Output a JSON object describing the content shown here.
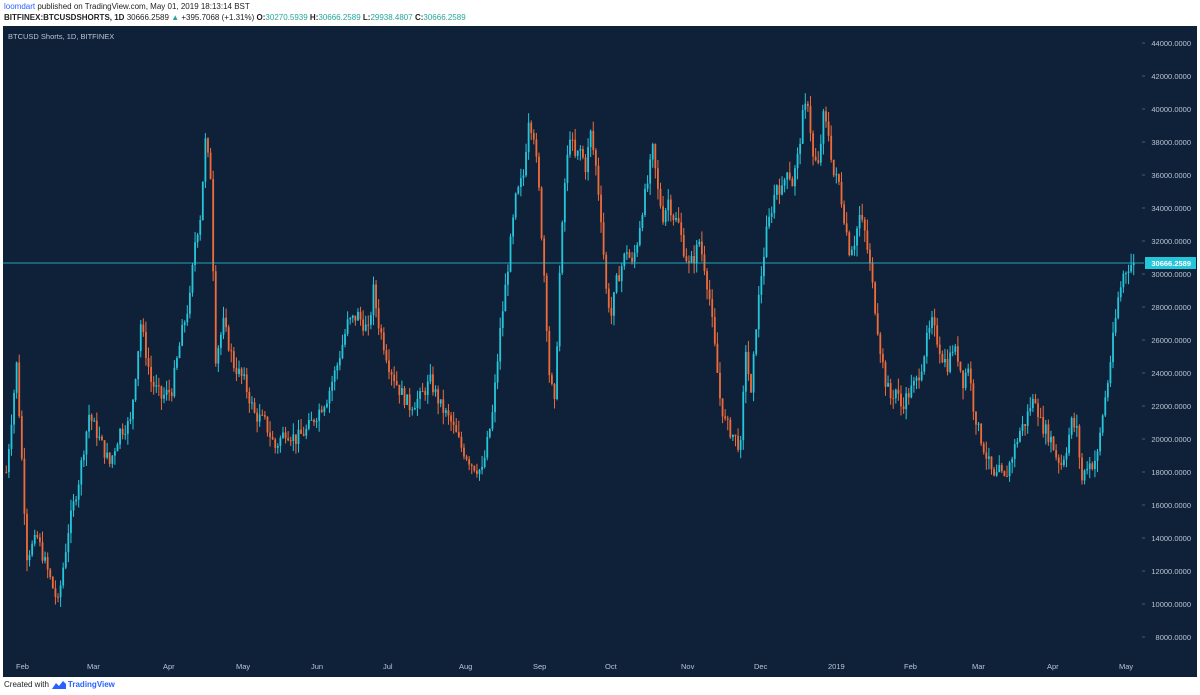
{
  "header": {
    "author": "loomdart",
    "published_text": " published on TradingView.com, May 01, 2019 18:13:14 BST",
    "symbol": "BITFINEX:BTCUSDSHORTS, 1D",
    "last": "30666.2589",
    "change_arrow": "▲",
    "change": "+395.7068 (+1.31%)",
    "o_label": "O:",
    "o_value": "30270.5939",
    "h_label": "H:",
    "h_value": "30666.2589",
    "l_label": "L:",
    "l_value": "29938.4807",
    "c_label": "C:",
    "c_value": "30666.2589"
  },
  "footer": {
    "created_text": "Created with",
    "brand": "TradingView"
  },
  "colors": {
    "background": "#0f2139",
    "up": "#26c6da",
    "down": "#ef6c3a",
    "price_line": "#26c6da"
  },
  "chart_data": {
    "type": "candlestick",
    "title": "BTCUSD Shorts, 1D, BITFINEX",
    "ylim": [
      7000,
      45000
    ],
    "y_ticks": [
      "44000.0000",
      "42000.0000",
      "40000.0000",
      "38000.0000",
      "36000.0000",
      "34000.0000",
      "32000.0000",
      "30000.0000",
      "28000.0000",
      "26000.0000",
      "24000.0000",
      "22000.0000",
      "20000.0000",
      "18000.0000",
      "16000.0000",
      "14000.0000",
      "12000.0000",
      "10000.0000",
      "8000.0000"
    ],
    "x_ticks": [
      "Feb",
      "Mar",
      "Apr",
      "May",
      "Jun",
      "Jul",
      "Aug",
      "Sep",
      "Oct",
      "Nov",
      "Dec",
      "2019",
      "Feb",
      "Mar",
      "Apr",
      "May"
    ],
    "last_price_label": "30666.2589",
    "last_price": 30666.2589,
    "close_series": [
      {
        "t": 0,
        "v": 18000
      },
      {
        "t": 4,
        "v": 24500
      },
      {
        "t": 8,
        "v": 13000
      },
      {
        "t": 12,
        "v": 14000
      },
      {
        "t": 16,
        "v": 12000
      },
      {
        "t": 20,
        "v": 10000
      },
      {
        "t": 24,
        "v": 14500
      },
      {
        "t": 28,
        "v": 17500
      },
      {
        "t": 32,
        "v": 21500
      },
      {
        "t": 36,
        "v": 20000
      },
      {
        "t": 40,
        "v": 18500
      },
      {
        "t": 44,
        "v": 20500
      },
      {
        "t": 48,
        "v": 21000
      },
      {
        "t": 52,
        "v": 27000
      },
      {
        "t": 56,
        "v": 23500
      },
      {
        "t": 60,
        "v": 22500
      },
      {
        "t": 64,
        "v": 23000
      },
      {
        "t": 68,
        "v": 26500
      },
      {
        "t": 71,
        "v": 28500
      },
      {
        "t": 73,
        "v": 32000
      },
      {
        "t": 75,
        "v": 33500
      },
      {
        "t": 77,
        "v": 38000
      },
      {
        "t": 79,
        "v": 36000
      },
      {
        "t": 81,
        "v": 25000
      },
      {
        "t": 84,
        "v": 27000
      },
      {
        "t": 88,
        "v": 24500
      },
      {
        "t": 92,
        "v": 23500
      },
      {
        "t": 96,
        "v": 21500
      },
      {
        "t": 100,
        "v": 21000
      },
      {
        "t": 104,
        "v": 19500
      },
      {
        "t": 108,
        "v": 20500
      },
      {
        "t": 112,
        "v": 20000
      },
      {
        "t": 116,
        "v": 20500
      },
      {
        "t": 120,
        "v": 21500
      },
      {
        "t": 124,
        "v": 22500
      },
      {
        "t": 128,
        "v": 24500
      },
      {
        "t": 132,
        "v": 27000
      },
      {
        "t": 136,
        "v": 27500
      },
      {
        "t": 140,
        "v": 26500
      },
      {
        "t": 142,
        "v": 29000
      },
      {
        "t": 144,
        "v": 27000
      },
      {
        "t": 148,
        "v": 24500
      },
      {
        "t": 152,
        "v": 23000
      },
      {
        "t": 156,
        "v": 22000
      },
      {
        "t": 160,
        "v": 22500
      },
      {
        "t": 164,
        "v": 23500
      },
      {
        "t": 168,
        "v": 22000
      },
      {
        "t": 172,
        "v": 21000
      },
      {
        "t": 176,
        "v": 19500
      },
      {
        "t": 180,
        "v": 18500
      },
      {
        "t": 184,
        "v": 18000
      },
      {
        "t": 188,
        "v": 21500
      },
      {
        "t": 191,
        "v": 26500
      },
      {
        "t": 194,
        "v": 30500
      },
      {
        "t": 197,
        "v": 34500
      },
      {
        "t": 200,
        "v": 36000
      },
      {
        "t": 202,
        "v": 39500
      },
      {
        "t": 204,
        "v": 38500
      },
      {
        "t": 206,
        "v": 35000
      },
      {
        "t": 208,
        "v": 30000
      },
      {
        "t": 210,
        "v": 24000
      },
      {
        "t": 212,
        "v": 22000
      },
      {
        "t": 214,
        "v": 30000
      },
      {
        "t": 216,
        "v": 35500
      },
      {
        "t": 218,
        "v": 38500
      },
      {
        "t": 220,
        "v": 37000
      },
      {
        "t": 222,
        "v": 37500
      },
      {
        "t": 224,
        "v": 36500
      },
      {
        "t": 226,
        "v": 38500
      },
      {
        "t": 228,
        "v": 36500
      },
      {
        "t": 230,
        "v": 33500
      },
      {
        "t": 232,
        "v": 29000
      },
      {
        "t": 234,
        "v": 27500
      },
      {
        "t": 236,
        "v": 29500
      },
      {
        "t": 238,
        "v": 30500
      },
      {
        "t": 240,
        "v": 31500
      },
      {
        "t": 242,
        "v": 30500
      },
      {
        "t": 244,
        "v": 32000
      },
      {
        "t": 246,
        "v": 34000
      },
      {
        "t": 248,
        "v": 35500
      },
      {
        "t": 250,
        "v": 37500
      },
      {
        "t": 252,
        "v": 35000
      },
      {
        "t": 254,
        "v": 33500
      },
      {
        "t": 256,
        "v": 34500
      },
      {
        "t": 258,
        "v": 33500
      },
      {
        "t": 260,
        "v": 33000
      },
      {
        "t": 262,
        "v": 31500
      },
      {
        "t": 264,
        "v": 30500
      },
      {
        "t": 266,
        "v": 31000
      },
      {
        "t": 268,
        "v": 32000
      },
      {
        "t": 270,
        "v": 30500
      },
      {
        "t": 272,
        "v": 28500
      },
      {
        "t": 274,
        "v": 25500
      },
      {
        "t": 276,
        "v": 22500
      },
      {
        "t": 278,
        "v": 21000
      },
      {
        "t": 280,
        "v": 20500
      },
      {
        "t": 282,
        "v": 20000
      },
      {
        "t": 284,
        "v": 19500
      },
      {
        "t": 286,
        "v": 25500
      },
      {
        "t": 288,
        "v": 22500
      },
      {
        "t": 290,
        "v": 27000
      },
      {
        "t": 292,
        "v": 30000
      },
      {
        "t": 294,
        "v": 32500
      },
      {
        "t": 296,
        "v": 34000
      },
      {
        "t": 298,
        "v": 35500
      },
      {
        "t": 300,
        "v": 35000
      },
      {
        "t": 302,
        "v": 36500
      },
      {
        "t": 304,
        "v": 35500
      },
      {
        "t": 306,
        "v": 37000
      },
      {
        "t": 308,
        "v": 39500
      },
      {
        "t": 310,
        "v": 40500
      },
      {
        "t": 312,
        "v": 37000
      },
      {
        "t": 314,
        "v": 36500
      },
      {
        "t": 316,
        "v": 39500
      },
      {
        "t": 318,
        "v": 38500
      },
      {
        "t": 320,
        "v": 36000
      },
      {
        "t": 322,
        "v": 35500
      },
      {
        "t": 324,
        "v": 33500
      },
      {
        "t": 326,
        "v": 31500
      },
      {
        "t": 328,
        "v": 32000
      },
      {
        "t": 330,
        "v": 33500
      },
      {
        "t": 332,
        "v": 32500
      },
      {
        "t": 334,
        "v": 30500
      },
      {
        "t": 336,
        "v": 28000
      },
      {
        "t": 338,
        "v": 25500
      },
      {
        "t": 340,
        "v": 23500
      },
      {
        "t": 342,
        "v": 22500
      },
      {
        "t": 344,
        "v": 23000
      },
      {
        "t": 346,
        "v": 22000
      },
      {
        "t": 348,
        "v": 22500
      },
      {
        "t": 350,
        "v": 23000
      },
      {
        "t": 352,
        "v": 23500
      },
      {
        "t": 354,
        "v": 24500
      },
      {
        "t": 356,
        "v": 26000
      },
      {
        "t": 358,
        "v": 27000
      },
      {
        "t": 360,
        "v": 26000
      },
      {
        "t": 362,
        "v": 25000
      },
      {
        "t": 364,
        "v": 24500
      },
      {
        "t": 366,
        "v": 25500
      },
      {
        "t": 368,
        "v": 25000
      },
      {
        "t": 370,
        "v": 23500
      },
      {
        "t": 372,
        "v": 24500
      },
      {
        "t": 374,
        "v": 22000
      },
      {
        "t": 376,
        "v": 20500
      },
      {
        "t": 378,
        "v": 19500
      },
      {
        "t": 380,
        "v": 18500
      },
      {
        "t": 382,
        "v": 17500
      },
      {
        "t": 384,
        "v": 18000
      },
      {
        "t": 386,
        "v": 17500
      },
      {
        "t": 388,
        "v": 18500
      },
      {
        "t": 390,
        "v": 19500
      },
      {
        "t": 392,
        "v": 20500
      },
      {
        "t": 394,
        "v": 21000
      },
      {
        "t": 396,
        "v": 22000
      },
      {
        "t": 398,
        "v": 22500
      },
      {
        "t": 400,
        "v": 21000
      },
      {
        "t": 402,
        "v": 20500
      },
      {
        "t": 404,
        "v": 20000
      },
      {
        "t": 406,
        "v": 19000
      },
      {
        "t": 408,
        "v": 18500
      },
      {
        "t": 410,
        "v": 19500
      },
      {
        "t": 412,
        "v": 21000
      },
      {
        "t": 414,
        "v": 20500
      },
      {
        "t": 416,
        "v": 17500
      },
      {
        "t": 418,
        "v": 18500
      },
      {
        "t": 420,
        "v": 18500
      },
      {
        "t": 422,
        "v": 19000
      },
      {
        "t": 424,
        "v": 21500
      },
      {
        "t": 426,
        "v": 23500
      },
      {
        "t": 428,
        "v": 26000
      },
      {
        "t": 430,
        "v": 28500
      },
      {
        "t": 432,
        "v": 30000
      },
      {
        "t": 434,
        "v": 30500
      },
      {
        "t": 436,
        "v": 30666
      }
    ]
  }
}
